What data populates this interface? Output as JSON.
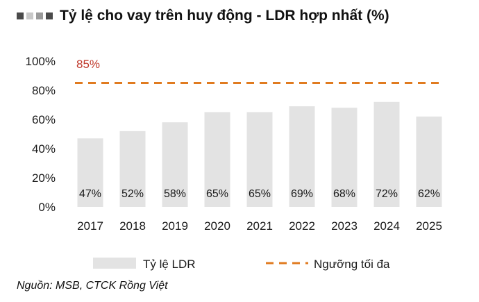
{
  "title": "Tỷ lệ cho vay trên huy động - LDR hợp nhất (%)",
  "source": "Nguồn: MSB, CTCK Rồng Việt",
  "colors": {
    "bar": "#e3e3e3",
    "threshold": "#e07b20",
    "threshold_label": "#c0392b",
    "text": "#1a1a1a"
  },
  "chart_data": {
    "type": "bar",
    "categories": [
      "2017",
      "2018",
      "2019",
      "2020",
      "2021",
      "2022",
      "2023",
      "2024",
      "2025"
    ],
    "series": [
      {
        "name": "Tỷ lệ LDR",
        "values": [
          47,
          52,
          58,
          65,
          65,
          69,
          68,
          72,
          62
        ]
      },
      {
        "name": "Ngưỡng tối đa",
        "values": [
          85,
          85,
          85,
          85,
          85,
          85,
          85,
          85,
          85
        ]
      }
    ],
    "data_labels": [
      "47%",
      "52%",
      "58%",
      "65%",
      "65%",
      "69%",
      "68%",
      "72%",
      "62%"
    ],
    "threshold_label": "85%",
    "y_ticks": [
      "0%",
      "20%",
      "40%",
      "60%",
      "80%",
      "100%"
    ],
    "ylim": [
      0,
      100
    ],
    "grid": false,
    "legend": "bottom"
  }
}
